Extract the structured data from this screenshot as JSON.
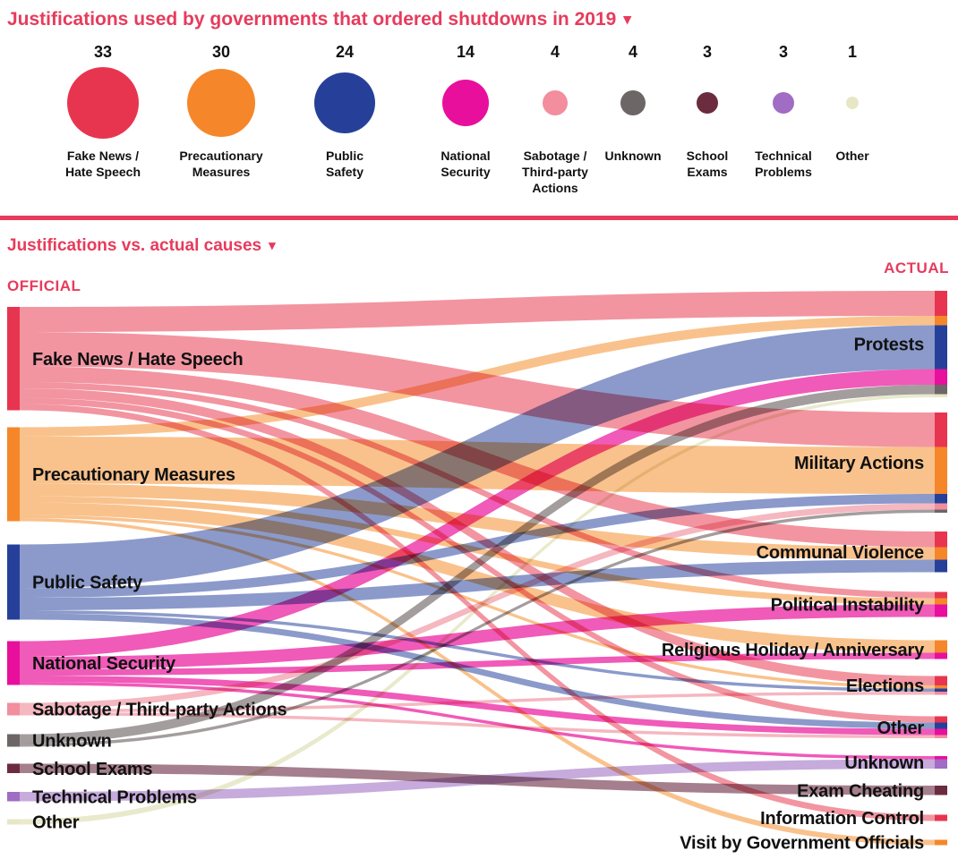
{
  "page": {
    "title": "Justifications used by governments that ordered shutdowns in 2019",
    "section_title": "Justifications vs. actual causes",
    "dropdown_icon": "▾",
    "left_column_label": "OFFICIAL",
    "right_column_label": "ACTUAL",
    "accent_color": "#e73b5c"
  },
  "chart_data": [
    {
      "type": "bubble",
      "title": "Justifications used by governments that ordered shutdowns in 2019",
      "categories": [
        "Fake News / Hate Speech",
        "Precautionary Measures",
        "Public Safety",
        "National Security",
        "Sabotage / Third-party Actions",
        "Unknown",
        "School Exams",
        "Technical Problems",
        "Other"
      ],
      "values": [
        33,
        30,
        24,
        14,
        4,
        4,
        3,
        3,
        1
      ],
      "colors": [
        "#e8354f",
        "#f5872a",
        "#26409a",
        "#e80f9d",
        "#f28e9e",
        "#6d6666",
        "#6b2c40",
        "#a06cc4",
        "#e7e7c6"
      ]
    },
    {
      "type": "sankey",
      "title": "Justifications vs. actual causes",
      "left_label": "OFFICIAL",
      "right_label": "ACTUAL",
      "left_nodes": [
        {
          "name": "Fake News / Hate Speech",
          "value": 33,
          "color": "#e8354f",
          "flow_color": "#f295a1"
        },
        {
          "name": "Precautionary Measures",
          "value": 30,
          "color": "#f5872a",
          "flow_color": "#f9c28c"
        },
        {
          "name": "Public Safety",
          "value": 24,
          "color": "#26409a",
          "flow_color": "#8b9aca"
        },
        {
          "name": "National Security",
          "value": 14,
          "color": "#e80f9d",
          "flow_color": "#f05ab8"
        },
        {
          "name": "Sabotage / Third-party Actions",
          "value": 4,
          "color": "#f28e9e",
          "flow_color": "#f5b7c0"
        },
        {
          "name": "Unknown",
          "value": 4,
          "color": "#6d6666",
          "flow_color": "#a39d9d"
        },
        {
          "name": "School Exams",
          "value": 3,
          "color": "#6b2c40",
          "flow_color": "#a57f8d"
        },
        {
          "name": "Technical Problems",
          "value": 3,
          "color": "#a06cc4",
          "flow_color": "#c6abdc"
        },
        {
          "name": "Other",
          "value": 1,
          "color": "#e7e7c6",
          "flow_color": "#e9e9cd"
        }
      ],
      "right_nodes": [
        "Protests",
        "Military Actions",
        "Communal Violence",
        "Political Instability",
        "Religious Holiday / Anniversary",
        "Elections",
        "Other",
        "Unknown",
        "Exam Cheating",
        "Information Control",
        "Visit by Government Officials"
      ],
      "links": [
        {
          "source": "Fake News / Hate Speech",
          "target": "Protests",
          "value": 8
        },
        {
          "source": "Fake News / Hate Speech",
          "target": "Military Actions",
          "value": 11
        },
        {
          "source": "Fake News / Hate Speech",
          "target": "Communal Violence",
          "value": 5
        },
        {
          "source": "Fake News / Hate Speech",
          "target": "Political Instability",
          "value": 2
        },
        {
          "source": "Fake News / Hate Speech",
          "target": "Elections",
          "value": 3
        },
        {
          "source": "Fake News / Hate Speech",
          "target": "Other",
          "value": 2
        },
        {
          "source": "Fake News / Hate Speech",
          "target": "Information Control",
          "value": 2
        },
        {
          "source": "Precautionary Measures",
          "target": "Protests",
          "value": 3
        },
        {
          "source": "Precautionary Measures",
          "target": "Military Actions",
          "value": 15
        },
        {
          "source": "Precautionary Measures",
          "target": "Communal Violence",
          "value": 4
        },
        {
          "source": "Precautionary Measures",
          "target": "Political Instability",
          "value": 2
        },
        {
          "source": "Precautionary Measures",
          "target": "Religious Holiday / Anniversary",
          "value": 4
        },
        {
          "source": "Precautionary Measures",
          "target": "Elections",
          "value": 1
        },
        {
          "source": "Precautionary Measures",
          "target": "Visit by Government Officials",
          "value": 1
        },
        {
          "source": "Public Safety",
          "target": "Protests",
          "value": 14
        },
        {
          "source": "Public Safety",
          "target": "Military Actions",
          "value": 3
        },
        {
          "source": "Public Safety",
          "target": "Communal Violence",
          "value": 4
        },
        {
          "source": "Public Safety",
          "target": "Elections",
          "value": 1
        },
        {
          "source": "Public Safety",
          "target": "Other",
          "value": 2
        },
        {
          "source": "National Security",
          "target": "Protests",
          "value": 5
        },
        {
          "source": "National Security",
          "target": "Political Instability",
          "value": 4
        },
        {
          "source": "National Security",
          "target": "Religious Holiday / Anniversary",
          "value": 2
        },
        {
          "source": "National Security",
          "target": "Other",
          "value": 2
        },
        {
          "source": "National Security",
          "target": "Unknown",
          "value": 1
        },
        {
          "source": "Sabotage / Third-party Actions",
          "target": "Military Actions",
          "value": 2
        },
        {
          "source": "Sabotage / Third-party Actions",
          "target": "Elections",
          "value": 1
        },
        {
          "source": "Sabotage / Third-party Actions",
          "target": "Other",
          "value": 1
        },
        {
          "source": "Unknown",
          "target": "Protests",
          "value": 3
        },
        {
          "source": "Unknown",
          "target": "Military Actions",
          "value": 1
        },
        {
          "source": "School Exams",
          "target": "Exam Cheating",
          "value": 3
        },
        {
          "source": "Technical Problems",
          "target": "Unknown",
          "value": 3
        },
        {
          "source": "Other",
          "target": "Protests",
          "value": 1
        }
      ]
    }
  ]
}
